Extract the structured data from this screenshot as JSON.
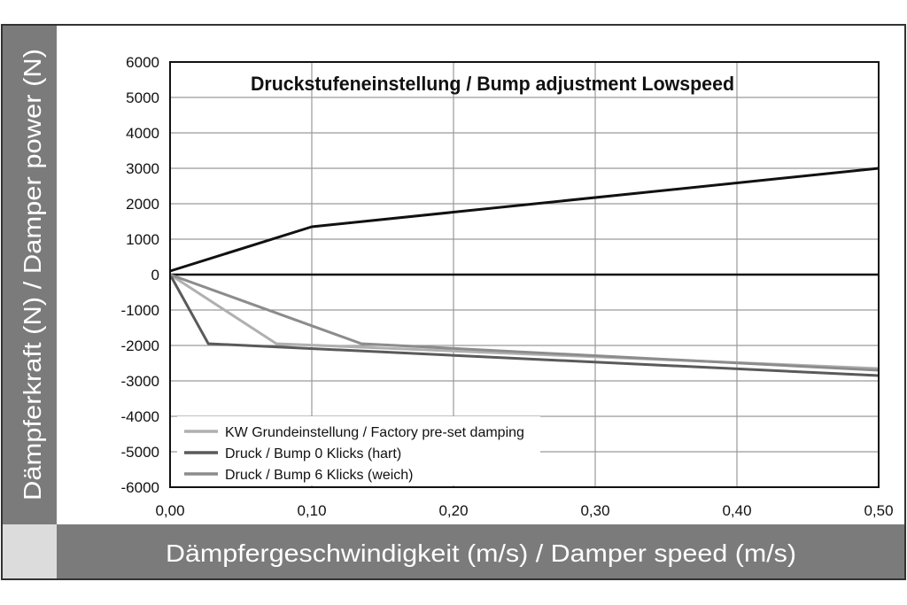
{
  "chart_data": {
    "type": "line",
    "title": "Druckstufeneinstellung / Bump adjustment Lowspeed",
    "xlabel": "Dämpfergeschwindigkeit (m/s) / Damper speed (m/s)",
    "ylabel": "Dämpferkraft (N) / Damper power (N)",
    "xlim": [
      0,
      0.5
    ],
    "ylim": [
      -6000,
      6000
    ],
    "x_ticks": [
      "0,00",
      "0,10",
      "0,20",
      "0,30",
      "0,40",
      "0,50"
    ],
    "y_ticks": [
      "6000",
      "5000",
      "4000",
      "3000",
      "2000",
      "1000",
      "0",
      "-1000",
      "-2000",
      "-3000",
      "-4000",
      "-5000",
      "-6000"
    ],
    "x_tick_values": [
      0,
      0.1,
      0.2,
      0.3,
      0.4,
      0.5
    ],
    "y_tick_values": [
      6000,
      5000,
      4000,
      3000,
      2000,
      1000,
      0,
      -1000,
      -2000,
      -3000,
      -4000,
      -5000,
      -6000
    ],
    "grid": true,
    "legend_position": "bottom-left",
    "zero_line_color": "#111111",
    "series": [
      {
        "name": "",
        "color": "#111111",
        "x": [
          0,
          0.1,
          0.5
        ],
        "y": [
          100,
          1350,
          3000
        ]
      },
      {
        "name": "KW Grundeinstellung / Factory pre-set damping",
        "color": "#b0b0b0",
        "x": [
          0,
          0.075,
          0.5
        ],
        "y": [
          0,
          -1950,
          -2650
        ]
      },
      {
        "name": "Druck / Bump 0 Klicks (hart)",
        "color": "#5a5a5a",
        "x": [
          0,
          0.027,
          0.5
        ],
        "y": [
          0,
          -1950,
          -2850
        ]
      },
      {
        "name": "Druck / Bump 6 Klicks (weich)",
        "color": "#8c8c8c",
        "x": [
          0,
          0.135,
          0.5
        ],
        "y": [
          0,
          -1950,
          -2700
        ]
      }
    ]
  },
  "colors": {
    "frame_band": "#7b7b7b",
    "corner_panel": "#dcdcdc",
    "grid": "#9a9a9a"
  }
}
